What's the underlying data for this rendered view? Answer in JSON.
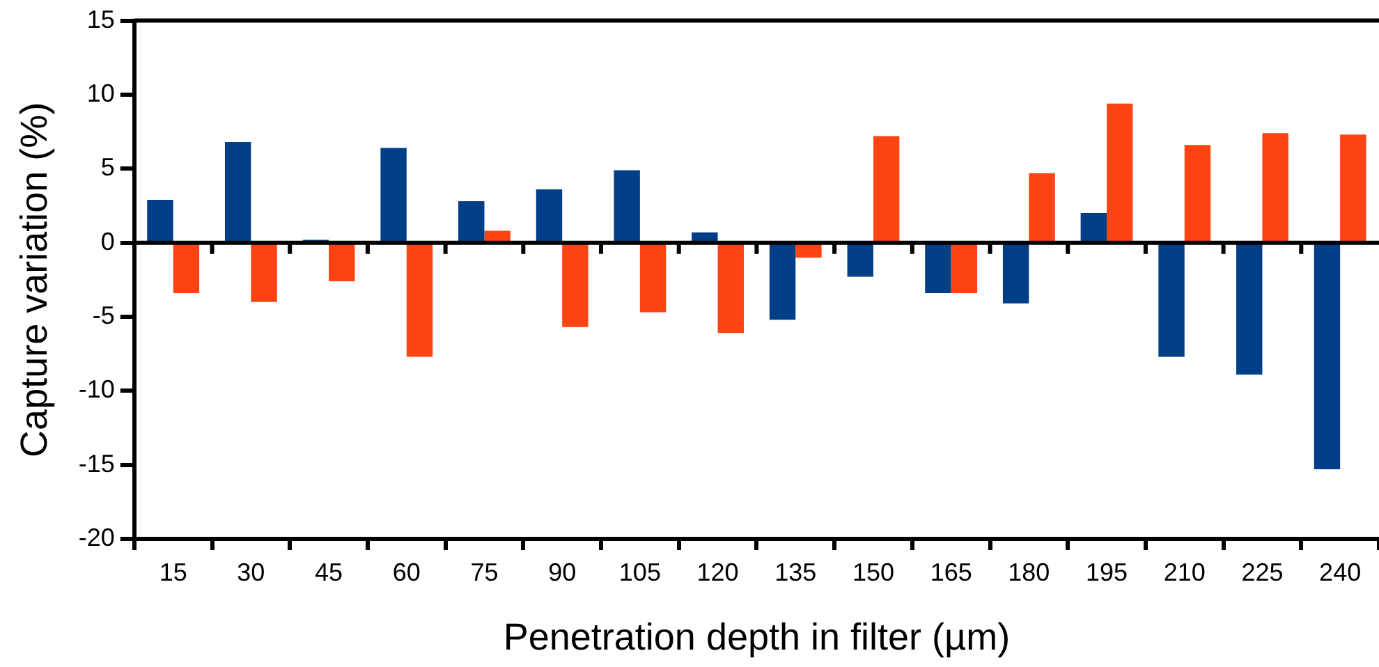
{
  "chart_data": {
    "type": "bar",
    "xlabel": "Penetration depth in filter (µm)",
    "ylabel": "Capture variation (%)",
    "categories": [
      "15",
      "30",
      "45",
      "60",
      "75",
      "90",
      "105",
      "120",
      "135",
      "150",
      "165",
      "180",
      "195",
      "210",
      "225",
      "240"
    ],
    "series": [
      {
        "color": "#003f87",
        "values": [
          2.9,
          6.8,
          0.2,
          6.4,
          2.8,
          3.6,
          4.9,
          0.7,
          -5.2,
          -2.3,
          -3.4,
          -4.1,
          2.0,
          -7.7,
          -8.9,
          -15.3
        ]
      },
      {
        "color": "#ff4413",
        "values": [
          -3.4,
          -4.0,
          -2.6,
          -7.7,
          0.8,
          -5.7,
          -4.7,
          -6.1,
          -1.0,
          7.2,
          -3.4,
          4.7,
          9.4,
          6.6,
          7.4,
          7.3
        ]
      }
    ],
    "ylim": [
      -20,
      15
    ],
    "yticks": [
      -20,
      -15,
      -10,
      -5,
      0,
      5,
      10,
      15
    ],
    "legend": false
  }
}
